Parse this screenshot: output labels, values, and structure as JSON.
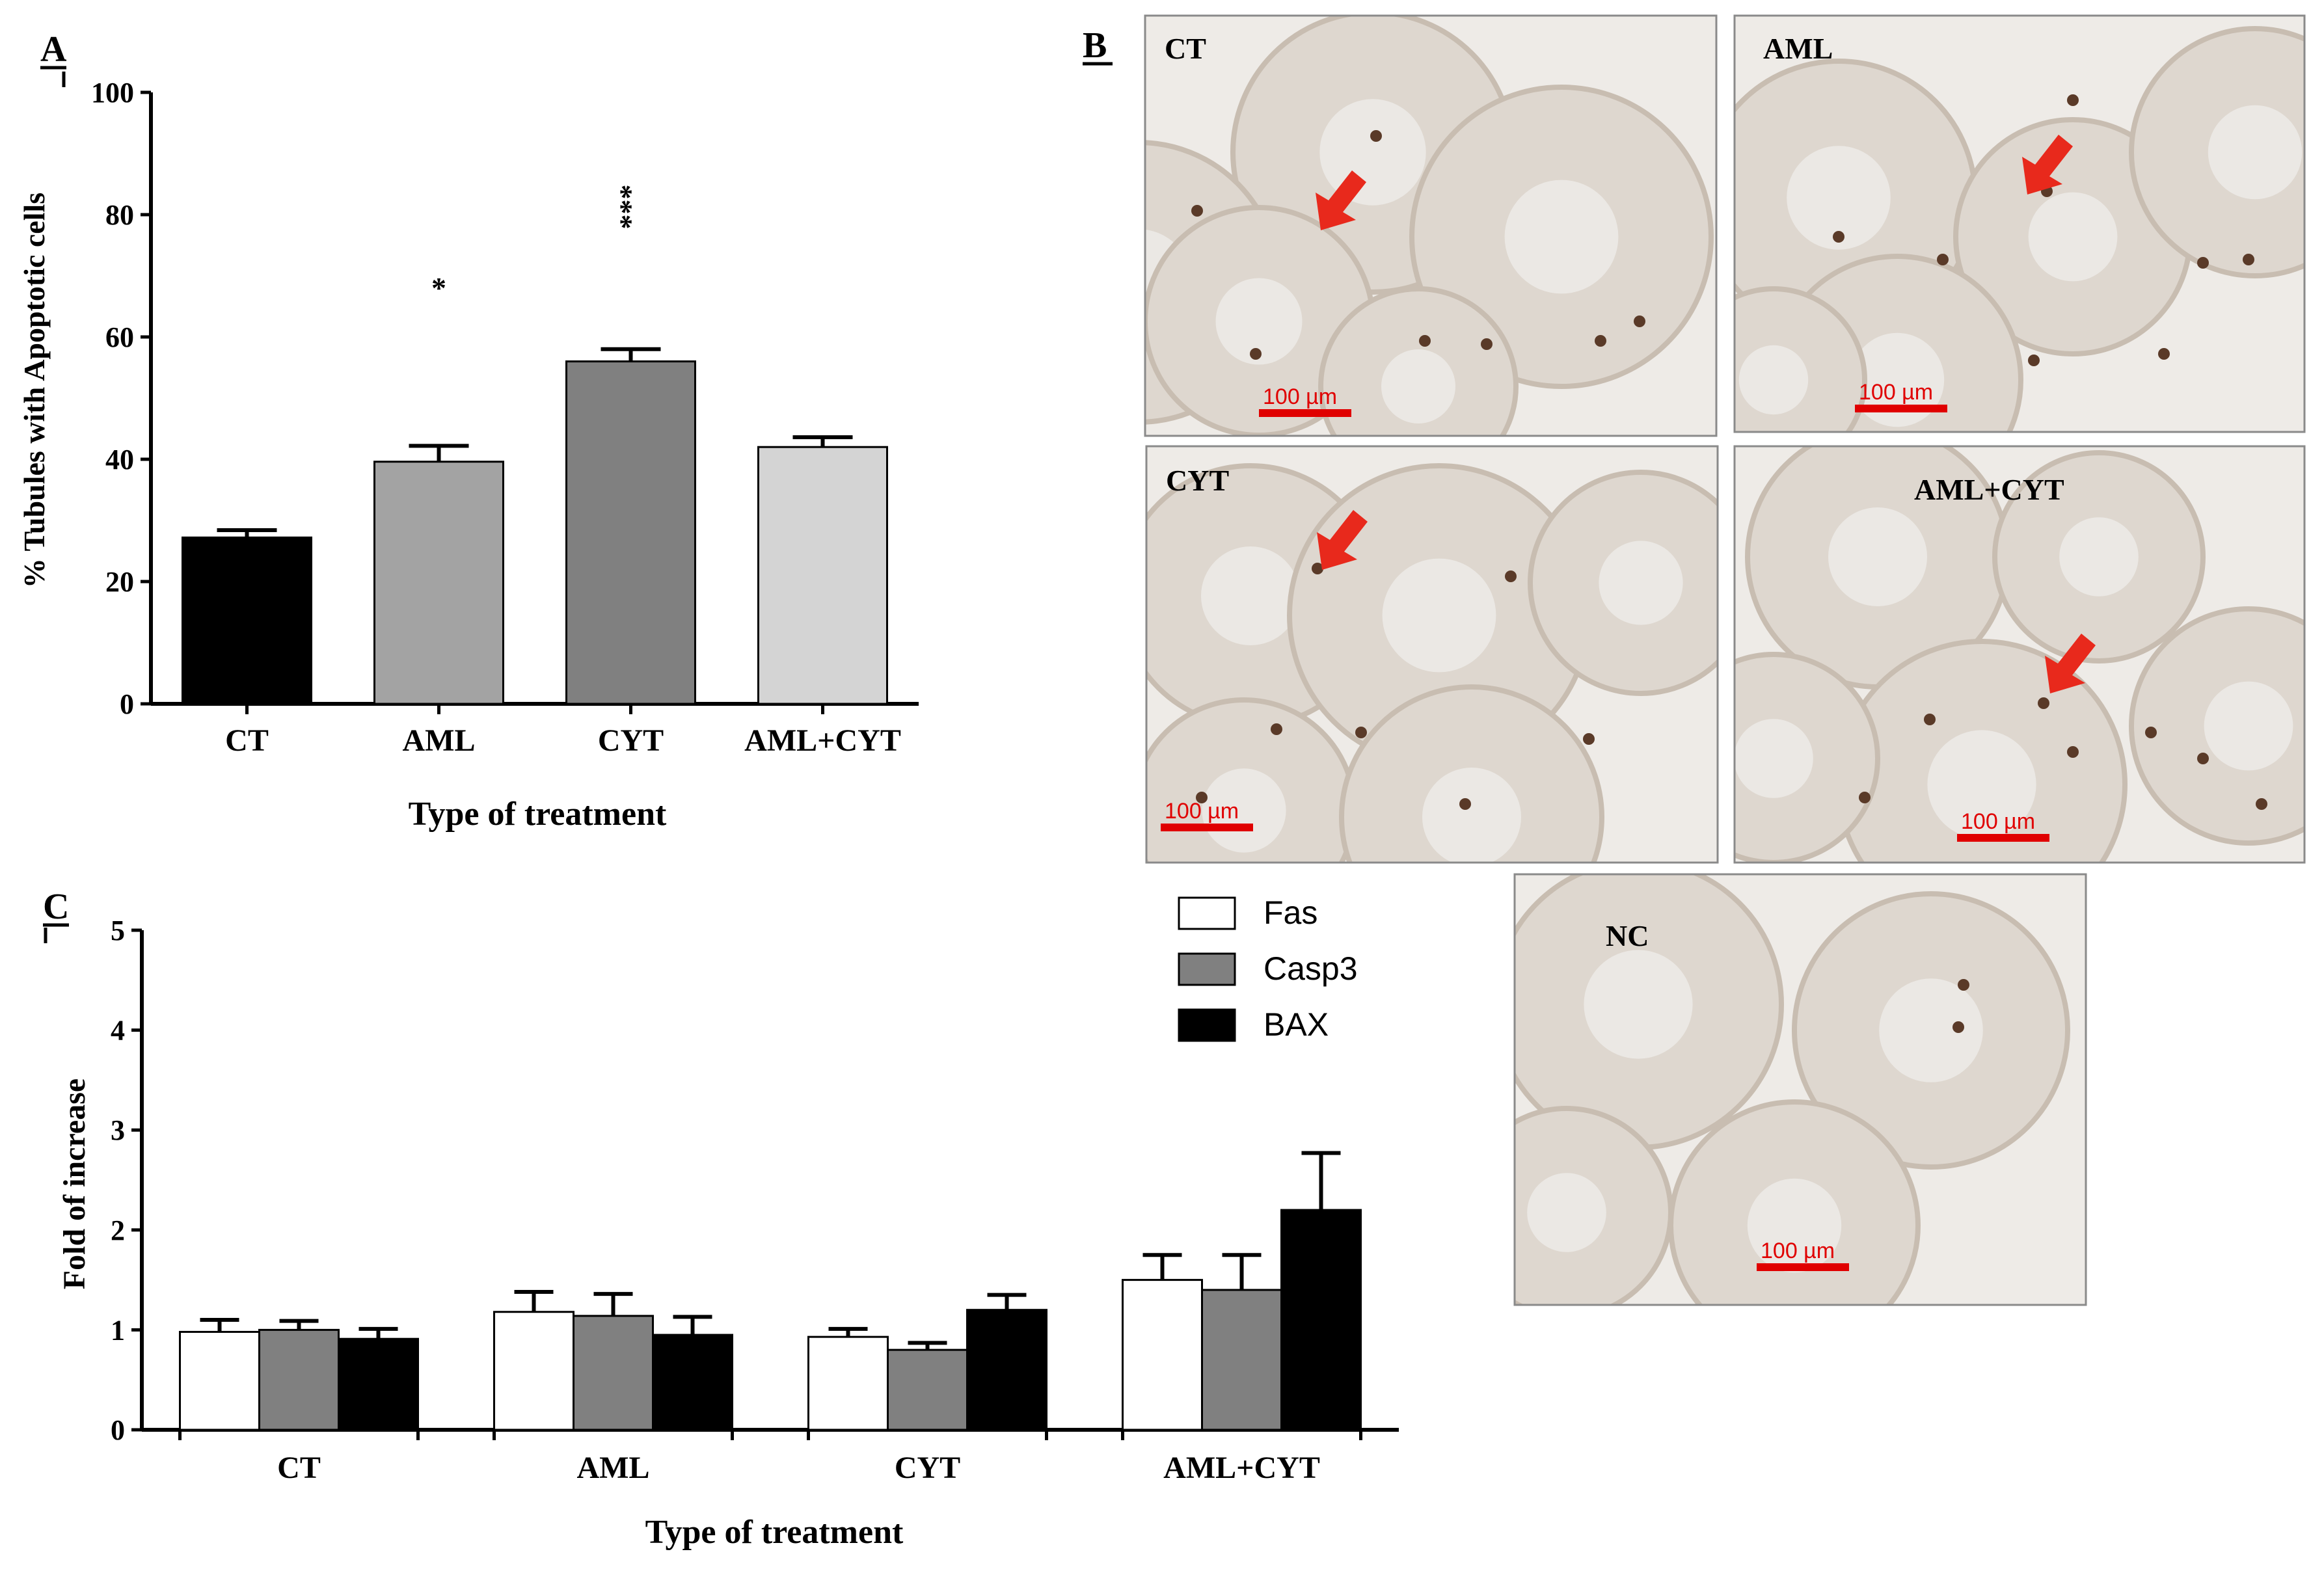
{
  "panel_labels": {
    "a": "A",
    "b": "B",
    "c": "C"
  },
  "micrographs": [
    {
      "label": "CT",
      "scale": "100 µm"
    },
    {
      "label": "AML",
      "scale": "100 µm"
    },
    {
      "label": "CYT",
      "scale": "100 µm"
    },
    {
      "label": "AML+CYT",
      "scale": "100 µm"
    },
    {
      "label": "NC",
      "scale": "100 µm"
    }
  ],
  "colors": {
    "bar_outline": "#000000",
    "arrow": "#e8291c",
    "scale_bar": "#e00000",
    "tissue_bg": "#eeebe7",
    "tubule": "#ded7cf",
    "stain": "#5a3a28"
  },
  "chart_data": [
    {
      "type": "bar",
      "categories": [
        "CT",
        "AML",
        "CYT",
        "AML+CYT"
      ],
      "values": [
        27.2,
        39.6,
        56.0,
        42.0
      ],
      "errors": [
        1.2,
        2.6,
        2.0,
        1.6
      ],
      "annotations": [
        "",
        "*",
        "***",
        ""
      ],
      "colors": [
        "#000000",
        "#a3a3a3",
        "#808080",
        "#d4d4d4"
      ],
      "xlabel": "Type of treatment",
      "ylabel": "% Tubules with Apoptotic cells",
      "ylim": [
        0,
        100
      ],
      "yticks": [
        0,
        20,
        40,
        60,
        80,
        100
      ],
      "grid": false
    },
    {
      "type": "bar",
      "categories": [
        "CT",
        "AML",
        "CYT",
        "AML+CYT"
      ],
      "series": [
        {
          "name": "Fas",
          "color": "#ffffff",
          "values": [
            0.98,
            1.18,
            0.93,
            1.5
          ],
          "errors": [
            0.12,
            0.2,
            0.08,
            0.25
          ]
        },
        {
          "name": "Casp3",
          "color": "#808080",
          "values": [
            1.0,
            1.14,
            0.8,
            1.4
          ],
          "errors": [
            0.09,
            0.22,
            0.07,
            0.35
          ]
        },
        {
          "name": "BAX",
          "color": "#000000",
          "values": [
            0.91,
            0.95,
            1.2,
            2.2
          ],
          "errors": [
            0.1,
            0.18,
            0.15,
            0.57
          ]
        }
      ],
      "xlabel": "Type of treatment",
      "ylabel": "Fold of increase",
      "ylim": [
        0,
        5
      ],
      "yticks": [
        0,
        1,
        2,
        3,
        4,
        5
      ],
      "legend": "top-right",
      "grid": false
    }
  ]
}
